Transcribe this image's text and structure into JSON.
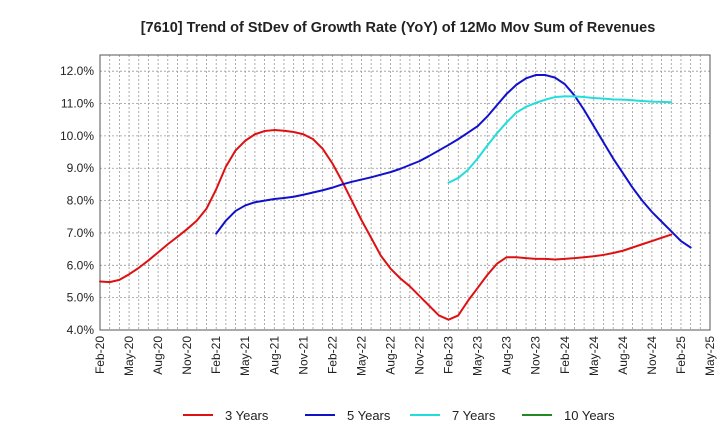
{
  "chart_data": {
    "type": "line",
    "title": "[7610]  Trend of StDev of Growth Rate (YoY) of 12Mo Mov Sum of Revenues",
    "xlabel": "",
    "ylabel": "",
    "ylim": [
      4.0,
      12.5
    ],
    "y_ticks": [
      4.0,
      5.0,
      6.0,
      7.0,
      8.0,
      9.0,
      10.0,
      11.0,
      12.0
    ],
    "y_tick_labels": [
      "4.0%",
      "5.0%",
      "6.0%",
      "7.0%",
      "8.0%",
      "9.0%",
      "10.0%",
      "11.0%",
      "12.0%"
    ],
    "x_tick_labels": [
      "Feb-20",
      "May-20",
      "Aug-20",
      "Nov-20",
      "Feb-21",
      "May-21",
      "Aug-21",
      "Nov-21",
      "Feb-22",
      "May-22",
      "Aug-22",
      "Nov-22",
      "Feb-23",
      "May-23",
      "Aug-23",
      "Nov-23",
      "Feb-24",
      "May-24",
      "Aug-24",
      "Nov-24",
      "Feb-25",
      "May-25"
    ],
    "grid": true,
    "legend_position": "bottom",
    "series": [
      {
        "name": "3 Years",
        "color": "#dd1111",
        "start_month_index": 0,
        "values": [
          5.5,
          5.48,
          5.55,
          5.72,
          5.92,
          6.15,
          6.4,
          6.65,
          6.88,
          7.12,
          7.38,
          7.75,
          8.35,
          9.05,
          9.55,
          9.85,
          10.05,
          10.15,
          10.18,
          10.16,
          10.12,
          10.05,
          9.9,
          9.6,
          9.15,
          8.6,
          8.0,
          7.4,
          6.85,
          6.3,
          5.9,
          5.6,
          5.35,
          5.05,
          4.75,
          4.45,
          4.32,
          4.45,
          4.9,
          5.3,
          5.7,
          6.05,
          6.25,
          6.25,
          6.22,
          6.2,
          6.2,
          6.18,
          6.2,
          6.22,
          6.25,
          6.28,
          6.32,
          6.38,
          6.45,
          6.55,
          6.65,
          6.75,
          6.85,
          6.95
        ]
      },
      {
        "name": "5 Years",
        "color": "#1111cc",
        "start_month_index": 12,
        "values": [
          6.98,
          7.38,
          7.68,
          7.85,
          7.95,
          8.0,
          8.05,
          8.08,
          8.12,
          8.18,
          8.25,
          8.32,
          8.4,
          8.5,
          8.58,
          8.65,
          8.72,
          8.8,
          8.88,
          8.98,
          9.1,
          9.22,
          9.38,
          9.55,
          9.72,
          9.9,
          10.1,
          10.3,
          10.6,
          10.95,
          11.3,
          11.58,
          11.78,
          11.88,
          11.88,
          11.8,
          11.6,
          11.25,
          10.8,
          10.3,
          9.8,
          9.3,
          8.85,
          8.4,
          8.0,
          7.65,
          7.35,
          7.05,
          6.75,
          6.55
        ]
      },
      {
        "name": "7 Years",
        "color": "#22dddd",
        "start_month_index": 36,
        "values": [
          8.55,
          8.7,
          8.95,
          9.3,
          9.7,
          10.08,
          10.42,
          10.72,
          10.9,
          11.02,
          11.12,
          11.2,
          11.22,
          11.22,
          11.2,
          11.17,
          11.15,
          11.13,
          11.12,
          11.1,
          11.08,
          11.06,
          11.05,
          11.04
        ]
      },
      {
        "name": "10 Years",
        "color": "#228822",
        "start_month_index": 0,
        "values": []
      }
    ]
  }
}
